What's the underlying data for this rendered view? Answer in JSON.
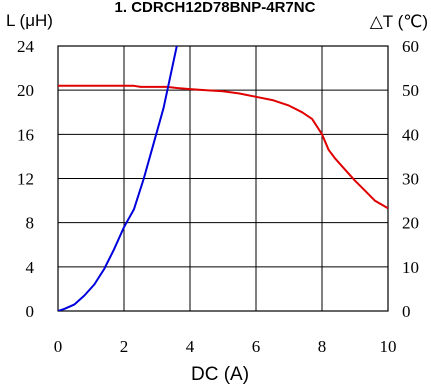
{
  "chart_data": {
    "type": "line",
    "title": "1. CDRCH12D78BNP-4R7NC",
    "xlabel": "DC (A)",
    "ylabel_left": "L (μH)",
    "ylabel_right": "△T (℃)",
    "xlim": [
      0,
      10
    ],
    "ylim_left": [
      0,
      24
    ],
    "ylim_right": [
      0,
      60
    ],
    "x_ticks": [
      "0",
      "2",
      "4",
      "6",
      "8",
      "10"
    ],
    "y_left_ticks": [
      "0",
      "4",
      "8",
      "12",
      "16",
      "20",
      "24"
    ],
    "y_right_ticks": [
      "0",
      "10",
      "20",
      "30",
      "40",
      "50",
      "60"
    ],
    "grid": true,
    "series": [
      {
        "axis": "left",
        "color": "#e00000",
        "x": [
          0,
          1,
          2,
          2.3,
          2.5,
          2.7,
          3,
          3.3,
          3.6,
          4,
          4.5,
          5,
          5.5,
          6,
          6.5,
          7,
          7.4,
          7.7,
          8,
          8.2,
          8.4,
          8.7,
          9,
          9.3,
          9.6,
          10
        ],
        "y": [
          20.4,
          20.4,
          20.4,
          20.4,
          20.3,
          20.3,
          20.3,
          20.3,
          20.2,
          20.1,
          20.0,
          19.9,
          19.7,
          19.4,
          19.1,
          18.6,
          18.0,
          17.4,
          16.0,
          14.6,
          13.8,
          12.8,
          11.8,
          10.9,
          10.0,
          9.3
        ]
      },
      {
        "axis": "right",
        "color": "#0000dd",
        "x": [
          0,
          0.2,
          0.5,
          0.8,
          1.1,
          1.4,
          1.7,
          2.0,
          2.3,
          2.6,
          2.9,
          3.2,
          3.4,
          3.6,
          3.8
        ],
        "y": [
          0,
          0.5,
          1.5,
          3.5,
          6.0,
          9.5,
          14,
          19,
          23,
          30,
          38,
          46,
          53,
          60,
          66
        ]
      }
    ]
  }
}
